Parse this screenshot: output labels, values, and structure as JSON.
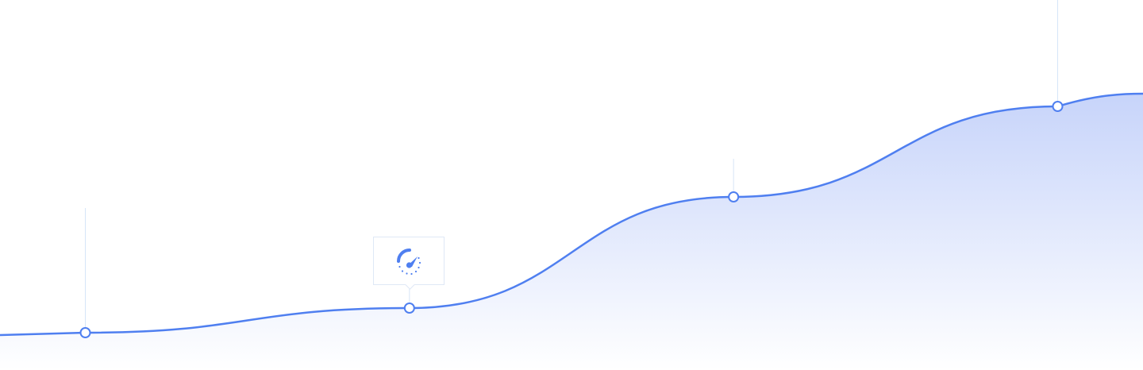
{
  "chart_data": {
    "type": "area",
    "series": [
      {
        "values": [
          0,
          0,
          0,
          0
        ]
      }
    ],
    "points": [
      {
        "x": 1,
        "y": 47
      },
      {
        "x": 2,
        "y": 78
      },
      {
        "x": 3,
        "y": 218
      },
      {
        "x": 4,
        "y": 332
      }
    ],
    "lead_in": {
      "y": 44
    },
    "lead_out": {
      "y": 348
    },
    "xlim": [
      0,
      5
    ],
    "ylim": [
      0,
      466
    ],
    "grid": false,
    "highlighted_point_index": 1
  },
  "tooltip": {
    "icon": "speedometer-icon"
  },
  "colors": {
    "line": "#4f7ff0",
    "fill_top": "#c7d4fa",
    "fill_bottom": "#ffffff",
    "guide": "#d6e6f8",
    "marker_fill": "#ffffff"
  }
}
